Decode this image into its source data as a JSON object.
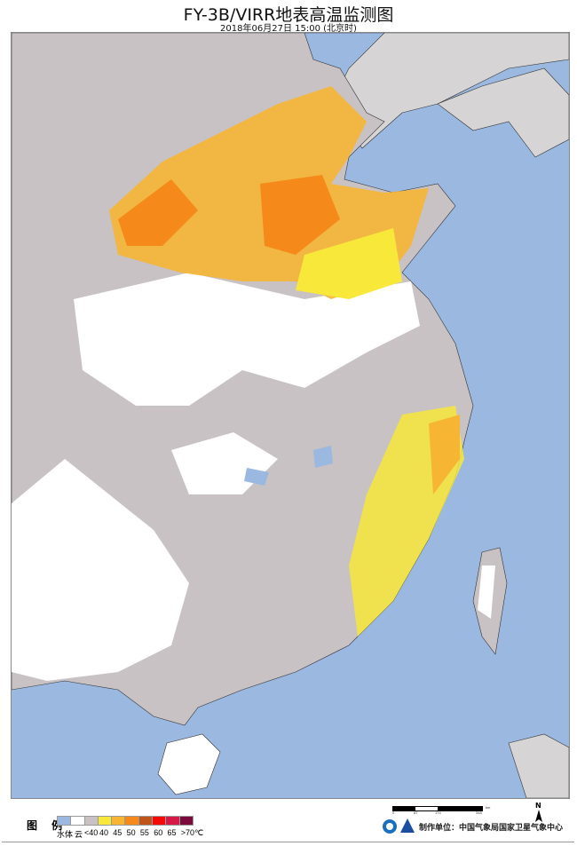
{
  "title": "FY-3B/VIRR地表高温监测图",
  "subtitle": "2018年06月27日  15:00  (北京时)",
  "legend": {
    "title": "图 例",
    "items": [
      {
        "label": "水体",
        "color": "#9ab8e0"
      },
      {
        "label": "云",
        "color": "#ffffff"
      },
      {
        "label": "<40",
        "color": "#c8c2c4"
      },
      {
        "label": "40",
        "color": "#f7e83a"
      },
      {
        "label": "45",
        "color": "#f6b634"
      },
      {
        "label": "50",
        "color": "#f58a1a"
      },
      {
        "label": "55",
        "color": "#c0541a"
      },
      {
        "label": "60",
        "color": "#f50a0a"
      },
      {
        "label": "65",
        "color": "#d51a48"
      },
      {
        "label": ">70℃",
        "color": "#7a0b3b"
      }
    ]
  },
  "scale_bar": {
    "ticks": [
      "0",
      "87",
      "174",
      "348"
    ],
    "unit": "km"
  },
  "north_label": "N",
  "producer": "制作单位：中国气象局国家卫星气象中心"
}
